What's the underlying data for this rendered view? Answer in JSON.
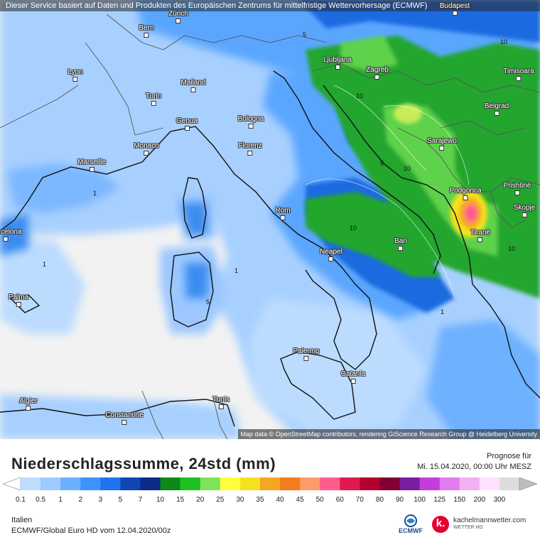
{
  "banner": "Dieser Service basiert auf Daten und Produkten des Europäischen Zentrums für mittelfristige Wettervorhersage (ECMWF)",
  "attribution": "Map data © OpenStreetMap contributors, rendering GIScience Research Group @ Heidelberg University",
  "cities": [
    "Budapest",
    "Zürich",
    "Bern",
    "Lyon",
    "Mailand",
    "Turin",
    "Genua",
    "Ljubljana",
    "Zagreb",
    "Bologna",
    "Timisoara",
    "Belgrad",
    "Florenz",
    "Monaco",
    "Marseille",
    "Sarajewo",
    "Podgorica",
    "Prishtinë",
    "Skopje",
    "Rom",
    "Tiranë",
    "Barcelona",
    "Bari",
    "Neapel",
    "Palma",
    "Palermo",
    "Catania",
    "Algier",
    "Tunis",
    "Constantine"
  ],
  "contour_values": [
    "1",
    "5",
    "10"
  ],
  "title": "Niederschlagssumme, 24std (mm)",
  "forecast": {
    "label": "Prognose für",
    "valid": "Mi. 15.04.2020, 00:00 Uhr MESZ"
  },
  "legend": {
    "unit": "mm",
    "values": [
      "0.1",
      "0.5",
      "1",
      "2",
      "3",
      "5",
      "7",
      "10",
      "15",
      "20",
      "25",
      "30",
      "35",
      "40",
      "45",
      "50",
      "60",
      "70",
      "80",
      "90",
      "100",
      "125",
      "150",
      "200",
      "300"
    ],
    "colors": [
      "#bfdcff",
      "#9ccbff",
      "#6bb0ff",
      "#3d93ff",
      "#1f74f0",
      "#1246b4",
      "#0a2b8a",
      "#0b8a1a",
      "#1fc11f",
      "#7ee35a",
      "#ffff3f",
      "#f5e21f",
      "#f5a623",
      "#f57b1f",
      "#ff9a6b",
      "#ff5c8c",
      "#e01a4f",
      "#b4002e",
      "#800033",
      "#7a1fa0",
      "#c43cdc",
      "#e07cf0",
      "#f0b0f5",
      "#ffe0ff",
      "#dcdcdc"
    ]
  },
  "region": "Italien",
  "model": "ECMWF/Global Euro HD vom  12.04.2020/00z",
  "logos": {
    "ecmwf": "ECMWF",
    "kachelmann_name": "kachelmannwetter.com",
    "kachelmann_sub": "WETTER HD",
    "kachelmann_mark": "k."
  }
}
